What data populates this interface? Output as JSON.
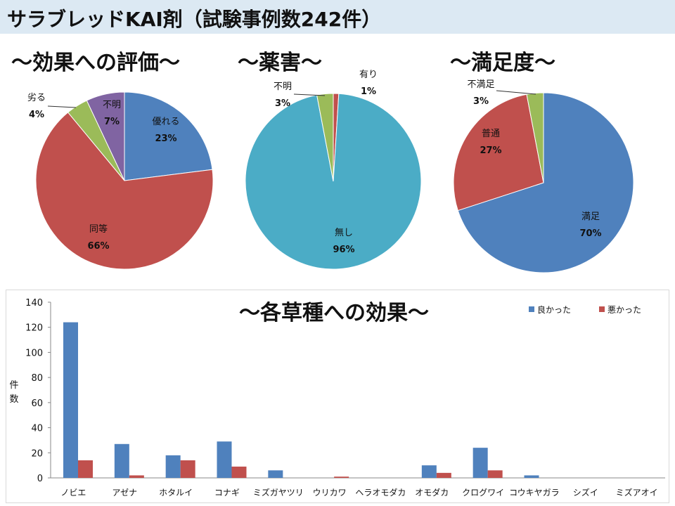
{
  "title": "サラブレッドKAI剤（試験事例数242件）",
  "colors": {
    "blue": "#4f81bd",
    "red": "#c0504d",
    "green": "#9bbb59",
    "purple": "#8064a2",
    "teal": "#4bacc6"
  },
  "chart_data": [
    {
      "type": "pie",
      "title": "～効果への評価～",
      "slices": [
        {
          "label": "優れる",
          "value": 23,
          "pct": "23%",
          "color": "#4f81bd"
        },
        {
          "label": "同等",
          "value": 66,
          "pct": "66%",
          "color": "#c0504d"
        },
        {
          "label": "劣る",
          "value": 4,
          "pct": "4%",
          "color": "#9bbb59"
        },
        {
          "label": "不明",
          "value": 7,
          "pct": "7%",
          "color": "#8064a2"
        }
      ]
    },
    {
      "type": "pie",
      "title": "～薬害～",
      "slices": [
        {
          "label": "有り",
          "value": 1,
          "pct": "1%",
          "color": "#c0504d"
        },
        {
          "label": "無し",
          "value": 96,
          "pct": "96%",
          "color": "#4bacc6"
        },
        {
          "label": "不明",
          "value": 3,
          "pct": "3%",
          "color": "#9bbb59"
        }
      ]
    },
    {
      "type": "pie",
      "title": "～満足度～",
      "slices": [
        {
          "label": "満足",
          "value": 70,
          "pct": "70%",
          "color": "#4f81bd"
        },
        {
          "label": "普通",
          "value": 27,
          "pct": "27%",
          "color": "#c0504d"
        },
        {
          "label": "不満足",
          "value": 3,
          "pct": "3%",
          "color": "#9bbb59"
        }
      ]
    },
    {
      "type": "bar",
      "title": "～各草種への効果～",
      "ylabel": "件数",
      "ylim": [
        0,
        140
      ],
      "yticks": [
        0,
        20,
        40,
        60,
        80,
        100,
        120,
        140
      ],
      "legend": "top-right",
      "categories": [
        "ノビエ",
        "アゼナ",
        "ホタルイ",
        "コナギ",
        "ミズガヤツリ",
        "ウリカワ",
        "ヘラオモダカ",
        "オモダカ",
        "クログワイ",
        "コウキヤガラ",
        "シズイ",
        "ミズアオイ"
      ],
      "series": [
        {
          "name": "良かった",
          "color": "#4f81bd",
          "values": [
            124,
            27,
            18,
            29,
            6,
            0,
            0,
            10,
            24,
            2,
            0,
            0
          ]
        },
        {
          "name": "悪かった",
          "color": "#c0504d",
          "values": [
            14,
            2,
            14,
            9,
            0,
            1,
            0,
            4,
            6,
            0,
            0,
            0
          ]
        }
      ]
    }
  ]
}
